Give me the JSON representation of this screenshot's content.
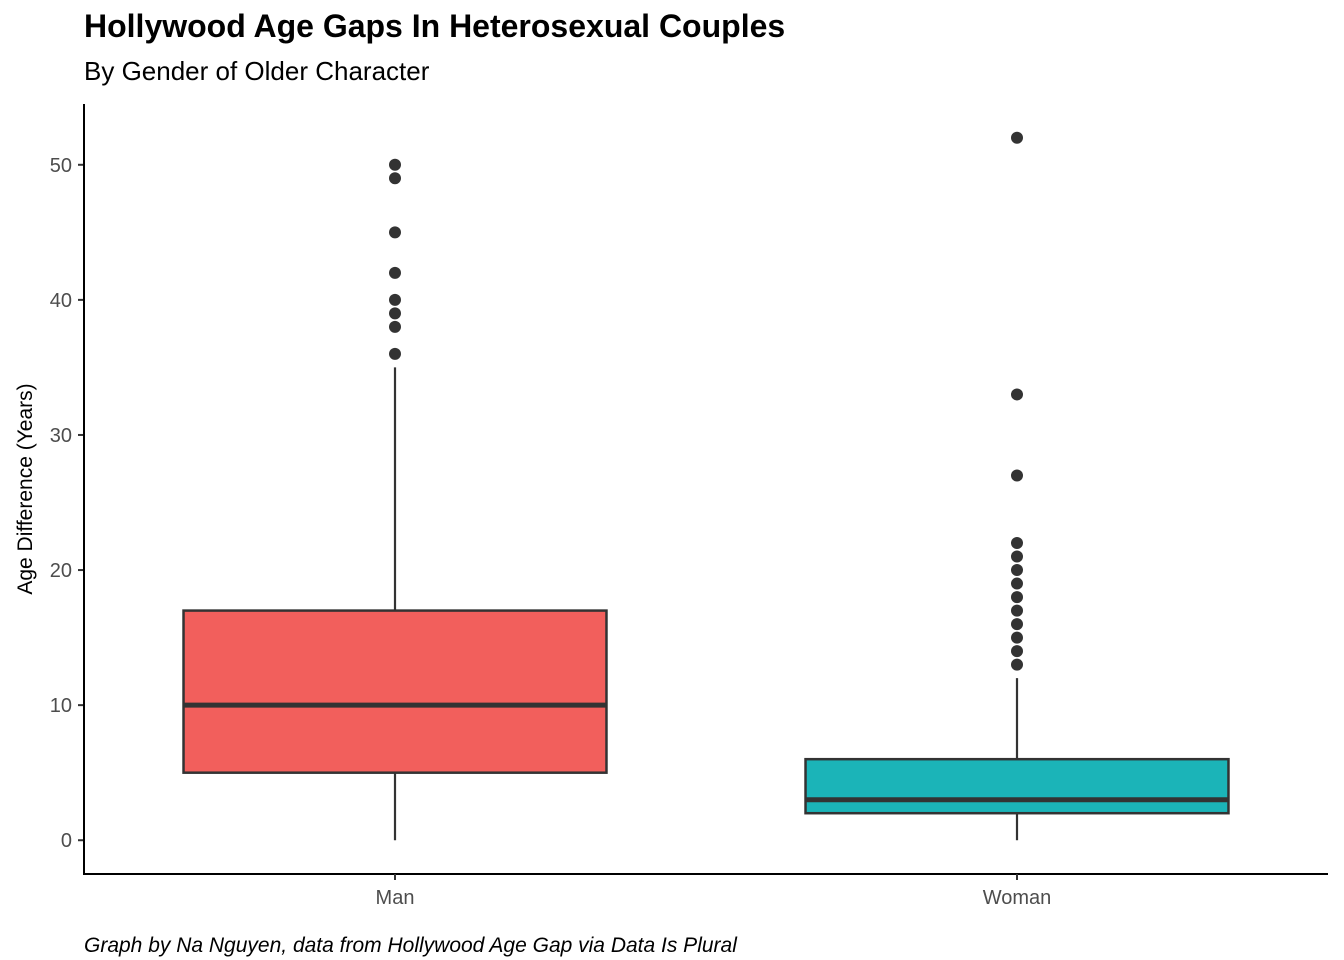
{
  "title": "Hollywood Age Gaps In Heterosexual Couples",
  "subtitle": "By Gender of Older Character",
  "caption": "Graph by Na Nguyen, data from Hollywood Age Gap via Data Is Plural",
  "chart_data": {
    "type": "box",
    "title": "Hollywood Age Gaps In Heterosexual Couples",
    "subtitle": "By Gender of Older Character",
    "xlabel": "",
    "ylabel": "Age Difference (Years)",
    "ylim": [
      -2.5,
      54.5
    ],
    "yticks": [
      0,
      10,
      20,
      30,
      40,
      50
    ],
    "categories": [
      "Man",
      "Woman"
    ],
    "boxes": [
      {
        "category": "Man",
        "color": "#F25F5C",
        "min": 0,
        "q1": 5,
        "median": 10,
        "q3": 17,
        "max": 35,
        "outliers": [
          36,
          38,
          39,
          40,
          42,
          45,
          49,
          50
        ]
      },
      {
        "category": "Woman",
        "color": "#1BB4B8",
        "min": 0,
        "q1": 2,
        "median": 3,
        "q3": 6,
        "max": 12,
        "outliers": [
          13,
          14,
          15,
          16,
          17,
          18,
          19,
          20,
          21,
          22,
          27,
          33,
          52
        ]
      }
    ],
    "grid": false,
    "legend": "none"
  }
}
